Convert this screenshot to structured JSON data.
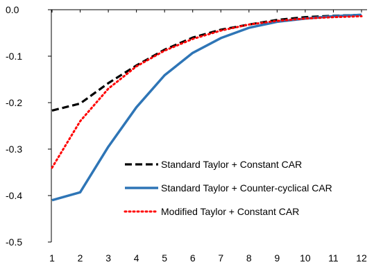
{
  "chart_data": {
    "type": "line",
    "title": "",
    "xlabel": "",
    "ylabel": "",
    "x": [
      1,
      2,
      3,
      4,
      5,
      6,
      7,
      8,
      9,
      10,
      11,
      12
    ],
    "xticks": [
      "1",
      "2",
      "3",
      "4",
      "5",
      "6",
      "7",
      "8",
      "9",
      "10",
      "11",
      "12"
    ],
    "yticks": [
      "0.0",
      "-0.1",
      "-0.2",
      "-0.3",
      "-0.4",
      "-0.5"
    ],
    "ytick_values": [
      0.0,
      -0.1,
      -0.2,
      -0.3,
      -0.4,
      -0.5
    ],
    "ylim": [
      -0.5,
      0.0
    ],
    "grid": false,
    "legend_position": "bottom-right",
    "series": [
      {
        "name": "Standard Taylor + Constant CAR",
        "color": "#000000",
        "style": "dashed",
        "values": [
          -0.217,
          -0.202,
          -0.158,
          -0.12,
          -0.086,
          -0.06,
          -0.043,
          -0.032,
          -0.022,
          -0.016,
          -0.013,
          -0.011
        ]
      },
      {
        "name": "Standard Taylor + Counter-cyclical CAR",
        "color": "#2E75B6",
        "style": "solid",
        "values": [
          -0.41,
          -0.393,
          -0.295,
          -0.21,
          -0.141,
          -0.093,
          -0.061,
          -0.039,
          -0.026,
          -0.019,
          -0.014,
          -0.011
        ]
      },
      {
        "name": "Modified Taylor + Constant CAR",
        "color": "#FF0000",
        "style": "dotted",
        "values": [
          -0.34,
          -0.24,
          -0.17,
          -0.122,
          -0.088,
          -0.063,
          -0.045,
          -0.032,
          -0.024,
          -0.019,
          -0.016,
          -0.014
        ]
      }
    ]
  }
}
